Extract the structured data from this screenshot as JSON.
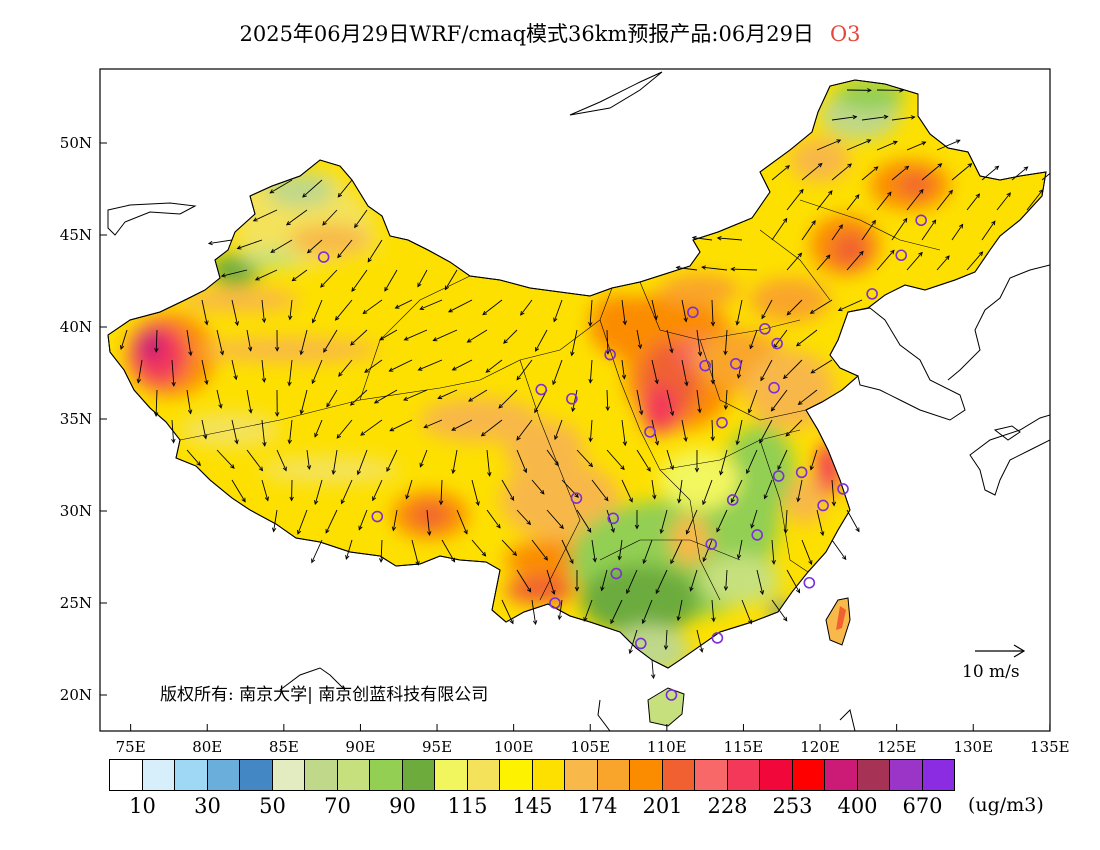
{
  "title": {
    "main": "2025年06月29日WRF/cmaq模式36km预报产品:06月29日",
    "species": "O3"
  },
  "map": {
    "lat_labels": [
      "50N",
      "45N",
      "40N",
      "35N",
      "30N",
      "25N",
      "20N"
    ],
    "lon_labels": [
      "75E",
      "80E",
      "85E",
      "90E",
      "95E",
      "100E",
      "105E",
      "110E",
      "115E",
      "120E",
      "125E",
      "130E",
      "135E"
    ],
    "copyright": "版权所有: 南京大学| 南京创蓝科技有限公司",
    "wind_reference": "10 m/s",
    "stations": [
      {
        "lon": 87.6,
        "lat": 43.8
      },
      {
        "lon": 101.8,
        "lat": 36.6
      },
      {
        "lon": 103.8,
        "lat": 36.1
      },
      {
        "lon": 106.3,
        "lat": 38.5
      },
      {
        "lon": 111.7,
        "lat": 40.8
      },
      {
        "lon": 112.5,
        "lat": 37.9
      },
      {
        "lon": 114.5,
        "lat": 38.0
      },
      {
        "lon": 116.4,
        "lat": 39.9
      },
      {
        "lon": 117.2,
        "lat": 39.1
      },
      {
        "lon": 117.0,
        "lat": 36.7
      },
      {
        "lon": 113.6,
        "lat": 34.8
      },
      {
        "lon": 108.9,
        "lat": 34.3
      },
      {
        "lon": 123.4,
        "lat": 41.8
      },
      {
        "lon": 125.3,
        "lat": 43.9
      },
      {
        "lon": 126.6,
        "lat": 45.8
      },
      {
        "lon": 91.1,
        "lat": 29.7
      },
      {
        "lon": 104.1,
        "lat": 30.7
      },
      {
        "lon": 106.5,
        "lat": 29.6
      },
      {
        "lon": 106.7,
        "lat": 26.6
      },
      {
        "lon": 102.7,
        "lat": 25.0
      },
      {
        "lon": 108.3,
        "lat": 22.8
      },
      {
        "lon": 113.3,
        "lat": 23.1
      },
      {
        "lon": 110.3,
        "lat": 20.0
      },
      {
        "lon": 112.9,
        "lat": 28.2
      },
      {
        "lon": 115.9,
        "lat": 28.7
      },
      {
        "lon": 114.3,
        "lat": 30.6
      },
      {
        "lon": 117.3,
        "lat": 31.9
      },
      {
        "lon": 118.8,
        "lat": 32.1
      },
      {
        "lon": 120.2,
        "lat": 30.3
      },
      {
        "lon": 121.5,
        "lat": 31.2
      },
      {
        "lon": 119.3,
        "lat": 26.1
      }
    ]
  },
  "legend": {
    "unit": "(ug/m3)",
    "labels": [
      "10",
      "30",
      "50",
      "70",
      "90",
      "115",
      "145",
      "174",
      "201",
      "228",
      "253",
      "400",
      "670"
    ],
    "colors": [
      "#ffffff",
      "#d7effb",
      "#9fd8f4",
      "#6aaedc",
      "#4388c4",
      "#e3ecc1",
      "#bfd88a",
      "#c7e07e",
      "#92cf52",
      "#6cab3c",
      "#f2f65e",
      "#f4e25a",
      "#fdf200",
      "#fde000",
      "#f8b84a",
      "#f9a52b",
      "#fb8c00",
      "#f06030",
      "#f86868",
      "#f3385a",
      "#f2073b",
      "#fe0000",
      "#cc1b77",
      "#a63255",
      "#9a35c8",
      "#8b2be2"
    ]
  }
}
